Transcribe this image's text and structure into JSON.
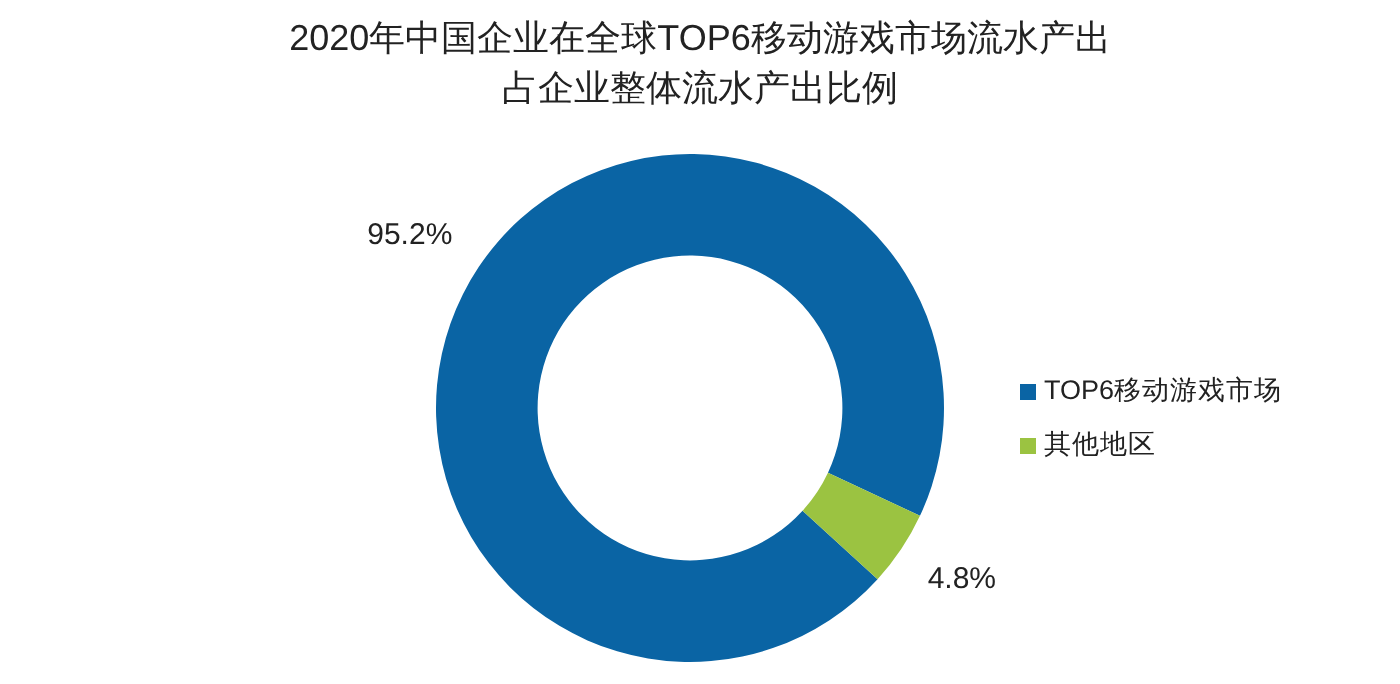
{
  "chart_data": {
    "type": "donut",
    "title": "2020年中国企业在全球TOP6移动游戏市场流水产出",
    "subtitle": "占企业整体流水产出比例",
    "categories": [
      "TOP6移动游戏市场",
      "其他地区"
    ],
    "values": [
      95.2,
      4.8
    ],
    "colors": [
      "#0a64a4",
      "#9bc341"
    ],
    "value_labels": [
      "95.2%",
      "4.8%"
    ],
    "legend": "right"
  }
}
